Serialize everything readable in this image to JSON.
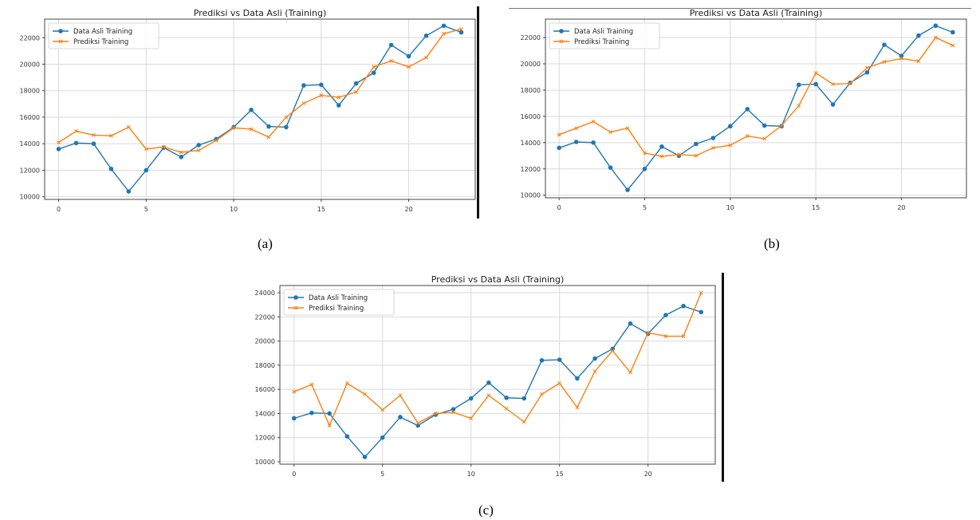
{
  "captions": [
    "(a)",
    "(b)",
    "(c)"
  ],
  "colors": {
    "actual": "#1f77b4",
    "predicted": "#ff7f0e",
    "grid": "#d9d9d9",
    "frame": "#444444"
  },
  "chart_data": [
    {
      "type": "line",
      "title": "Prediksi vs Data Asli (Training)",
      "xticks": [
        0,
        5,
        10,
        15,
        20
      ],
      "yticks": [
        10000,
        12000,
        14000,
        16000,
        18000,
        20000,
        22000
      ],
      "xlim": [
        -0.8,
        23.8
      ],
      "ylim": [
        9800,
        23400
      ],
      "grid": true,
      "legend": "top-left",
      "x": [
        0,
        1,
        2,
        3,
        4,
        5,
        6,
        7,
        8,
        9,
        10,
        11,
        12,
        13,
        14,
        15,
        16,
        17,
        18,
        19,
        20,
        21,
        22,
        23
      ],
      "series": [
        {
          "name": "Data Asli Training",
          "marker": "circle",
          "values": [
            13600,
            14050,
            14000,
            12100,
            10400,
            12000,
            13700,
            13000,
            13900,
            14350,
            15250,
            16550,
            15300,
            15250,
            18400,
            18450,
            16900,
            18550,
            19350,
            21450,
            20600,
            22150,
            22900,
            22400
          ]
        },
        {
          "name": "Prediksi Training",
          "marker": "x",
          "values": [
            14100,
            14950,
            14650,
            14600,
            15250,
            13600,
            13750,
            13350,
            13500,
            14250,
            15200,
            15100,
            14500,
            16000,
            17050,
            17650,
            17500,
            17900,
            19800,
            20250,
            19800,
            20500,
            22300,
            22650
          ]
        }
      ]
    },
    {
      "type": "line",
      "title": "Prediksi vs Data Asli (Training)",
      "xticks": [
        0,
        5,
        10,
        15,
        20
      ],
      "yticks": [
        10000,
        12000,
        14000,
        16000,
        18000,
        20000,
        22000
      ],
      "xlim": [
        -0.8,
        23.8
      ],
      "ylim": [
        9800,
        23400
      ],
      "grid": true,
      "legend": "top-left",
      "x": [
        0,
        1,
        2,
        3,
        4,
        5,
        6,
        7,
        8,
        9,
        10,
        11,
        12,
        13,
        14,
        15,
        16,
        17,
        18,
        19,
        20,
        21,
        22,
        23
      ],
      "series": [
        {
          "name": "Data Asli Training",
          "marker": "circle",
          "values": [
            13600,
            14050,
            14000,
            12100,
            10400,
            12000,
            13700,
            13000,
            13900,
            14350,
            15250,
            16550,
            15300,
            15250,
            18400,
            18450,
            16900,
            18550,
            19350,
            21450,
            20600,
            22150,
            22900,
            22400
          ]
        },
        {
          "name": "Prediksi Training",
          "marker": "x",
          "values": [
            14600,
            15100,
            15600,
            14800,
            15100,
            13200,
            12950,
            13100,
            13000,
            13600,
            13800,
            14500,
            14300,
            15300,
            16800,
            19300,
            18450,
            18500,
            19700,
            20150,
            20400,
            20200,
            22000,
            21400
          ]
        }
      ]
    },
    {
      "type": "line",
      "title": "Prediksi vs Data Asli (Training)",
      "xticks": [
        0,
        5,
        10,
        15,
        20
      ],
      "yticks": [
        10000,
        12000,
        14000,
        16000,
        18000,
        20000,
        22000,
        24000
      ],
      "xlim": [
        -0.8,
        23.8
      ],
      "ylim": [
        9800,
        24600
      ],
      "grid": true,
      "legend": "top-left",
      "x": [
        0,
        1,
        2,
        3,
        4,
        5,
        6,
        7,
        8,
        9,
        10,
        11,
        12,
        13,
        14,
        15,
        16,
        17,
        18,
        19,
        20,
        21,
        22,
        23
      ],
      "series": [
        {
          "name": "Data Asli Training",
          "marker": "circle",
          "values": [
            13600,
            14050,
            14000,
            12100,
            10400,
            12000,
            13700,
            13000,
            13900,
            14350,
            15250,
            16550,
            15300,
            15250,
            18400,
            18450,
            16900,
            18550,
            19350,
            21450,
            20600,
            22150,
            22900,
            22400
          ]
        },
        {
          "name": "Prediksi Training",
          "marker": "x",
          "values": [
            15800,
            16400,
            13000,
            16500,
            15600,
            14300,
            15500,
            13200,
            14000,
            14100,
            13600,
            15500,
            14400,
            13300,
            15600,
            16500,
            14500,
            17500,
            19200,
            17400,
            20700,
            20400,
            20400,
            24000
          ]
        }
      ]
    }
  ]
}
